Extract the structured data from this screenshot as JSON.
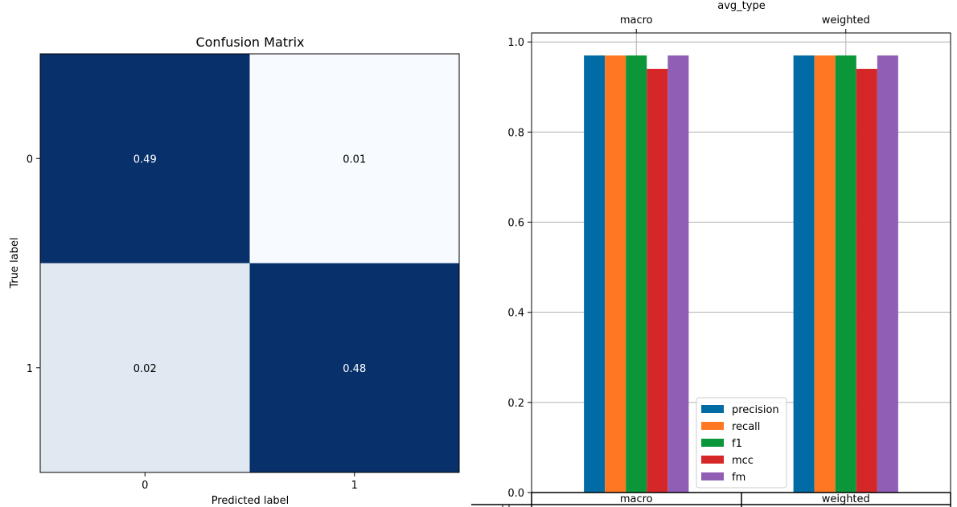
{
  "colors": {
    "dark_cell": "#08306b",
    "light_cell": "#f7fbff",
    "axis": "#000000",
    "grid": "#b0b0b0",
    "cell_text_on_dark": "#ffffff",
    "cell_text_on_light": "#000000"
  },
  "chart_data": [
    {
      "type": "heatmap",
      "title": "Confusion Matrix",
      "xlabel": "Predicted label",
      "ylabel": "True label",
      "x_ticks": [
        "0",
        "1"
      ],
      "y_ticks": [
        "0",
        "1"
      ],
      "values": [
        [
          0.49,
          0.01
        ],
        [
          0.02,
          0.48
        ]
      ],
      "value_labels": [
        [
          "0.49",
          "0.01"
        ],
        [
          "0.02",
          "0.48"
        ]
      ],
      "colormap": "Blues"
    },
    {
      "type": "bar",
      "top_axis_label": "avg_type",
      "categories": [
        "macro",
        "weighted"
      ],
      "top_ticks": [
        "macro",
        "weighted"
      ],
      "table_labels": [
        "macro",
        "weighted"
      ],
      "ylim": [
        0,
        1.02
      ],
      "yticks": [
        "0.0",
        "0.2",
        "0.4",
        "0.6",
        "0.8",
        "1.0"
      ],
      "grid": true,
      "legend_position": "lower center",
      "series": [
        {
          "name": "precision",
          "color": "#006ba4",
          "values": [
            0.97,
            0.97
          ]
        },
        {
          "name": "recall",
          "color": "#ff7722",
          "values": [
            0.97,
            0.97
          ]
        },
        {
          "name": "f1",
          "color": "#0a9639",
          "values": [
            0.97,
            0.97
          ]
        },
        {
          "name": "mcc",
          "color": "#d62728",
          "values": [
            0.94,
            0.94
          ]
        },
        {
          "name": "fm",
          "color": "#915eb5",
          "values": [
            0.97,
            0.97
          ]
        }
      ]
    }
  ]
}
